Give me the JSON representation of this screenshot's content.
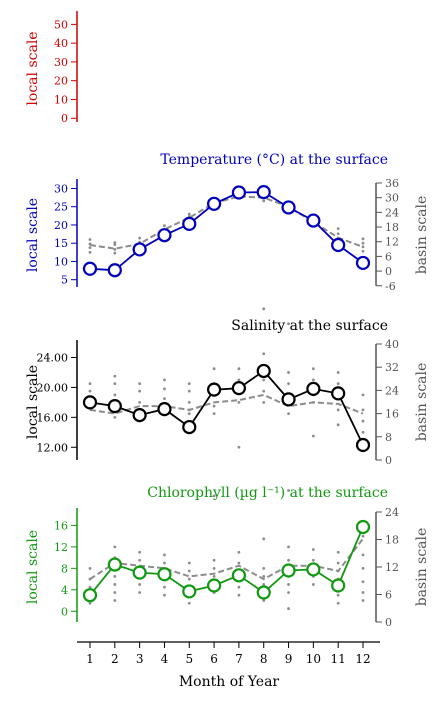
{
  "x_axis": {
    "label": "Month of Year",
    "ticks": [
      "1",
      "2",
      "3",
      "4",
      "5",
      "6",
      "7",
      "8",
      "9",
      "10",
      "11",
      "12"
    ]
  },
  "chart_data": [
    {
      "type": "line",
      "title": "",
      "ylabel": "local scale",
      "color": "#cc0000",
      "ylim": [
        -2,
        55
      ],
      "yticks": [
        0,
        10,
        20,
        30,
        40,
        50
      ],
      "tick_labels": [
        "0",
        "10",
        "20",
        "30",
        "40",
        "50"
      ],
      "series": []
    },
    {
      "type": "line",
      "title": "Temperature (°C) at the surface",
      "ylabel": "local scale",
      "y2label": "basin scale",
      "color": "#0000bb",
      "ylim": [
        3,
        31.5
      ],
      "yticks": [
        5,
        10,
        15,
        20,
        25,
        30
      ],
      "tick_labels": [
        "5",
        "10",
        "15",
        "20",
        "25",
        "30"
      ],
      "y2lim": [
        -6.5,
        36
      ],
      "y2ticks": [
        -6,
        0,
        6,
        12,
        18,
        24,
        30,
        36
      ],
      "y2tick_labels": [
        "-6",
        "0",
        "6",
        "12",
        "18",
        "24",
        "30",
        "36"
      ],
      "x": [
        1,
        2,
        3,
        4,
        5,
        6,
        7,
        8,
        9,
        10,
        11,
        12
      ],
      "values": [
        8.0,
        7.6,
        13.3,
        17.2,
        20.3,
        25.8,
        28.9,
        29.0,
        24.8,
        21.2,
        14.5,
        9.6
      ],
      "basin_mean": [
        14.5,
        13.5,
        14.8,
        18.8,
        22.0,
        26.0,
        27.8,
        27.5,
        25.0,
        20.8,
        16.5,
        14.0
      ],
      "scatter": [
        [
          1,
          16.0
        ],
        [
          1,
          14.8
        ],
        [
          1,
          13.8
        ],
        [
          1,
          12.5
        ],
        [
          2,
          15.2
        ],
        [
          2,
          14.6
        ],
        [
          2,
          13.3
        ],
        [
          2,
          12.3
        ],
        [
          3,
          16.4
        ],
        [
          3,
          15.3
        ],
        [
          3,
          14.2
        ],
        [
          4,
          19.8
        ],
        [
          4,
          18.8
        ],
        [
          4,
          17.8
        ],
        [
          5,
          23.0
        ],
        [
          5,
          22.3
        ],
        [
          5,
          21.6
        ],
        [
          6,
          27.0
        ],
        [
          6,
          26.0
        ],
        [
          6,
          25.4
        ],
        [
          7,
          28.6
        ],
        [
          7,
          27.9
        ],
        [
          8,
          28.5
        ],
        [
          8,
          27.5
        ],
        [
          8,
          26.6
        ],
        [
          9,
          26.0
        ],
        [
          9,
          25.0
        ],
        [
          9,
          24.0
        ],
        [
          10,
          22.0
        ],
        [
          10,
          21.0
        ],
        [
          10,
          20.1
        ],
        [
          11,
          19.0
        ],
        [
          11,
          17.6
        ],
        [
          11,
          16.4
        ],
        [
          11,
          15.4
        ],
        [
          12,
          16.2
        ],
        [
          12,
          15.0
        ],
        [
          12,
          14.0
        ],
        [
          12,
          12.8
        ]
      ]
    },
    {
      "type": "line",
      "title": "Salinity at the surface",
      "ylabel": "local scale",
      "y2label": "basin scale",
      "color": "#000000",
      "ylim": [
        10.3,
        25.8
      ],
      "yticks": [
        12,
        16,
        20,
        24
      ],
      "tick_labels": [
        "12.00",
        "16.00",
        "20.00",
        "24.00"
      ],
      "y2lim": [
        0,
        40
      ],
      "y2ticks": [
        0,
        8,
        16,
        24,
        32,
        40
      ],
      "y2tick_labels": [
        "0",
        "8",
        "16",
        "24",
        "32",
        "40"
      ],
      "x": [
        1,
        2,
        3,
        4,
        5,
        6,
        7,
        8,
        9,
        10,
        11,
        12
      ],
      "values": [
        18.0,
        17.5,
        16.3,
        17.1,
        14.7,
        19.7,
        19.9,
        22.2,
        18.4,
        19.8,
        19.2,
        12.3
      ],
      "basin_mean": [
        17.0,
        16.5,
        17.5,
        17.5,
        17.0,
        18.0,
        18.3,
        19.0,
        17.5,
        18.0,
        17.8,
        16.5
      ],
      "scatter": [
        [
          1,
          20.5
        ],
        [
          1,
          19.5
        ],
        [
          1,
          18.5
        ],
        [
          1,
          17.5
        ],
        [
          2,
          21.5
        ],
        [
          2,
          20.5
        ],
        [
          2,
          19.0
        ],
        [
          2,
          17.5
        ],
        [
          2,
          16.0
        ],
        [
          3,
          20.5
        ],
        [
          3,
          19.5
        ],
        [
          3,
          18.0
        ],
        [
          3,
          17.0
        ],
        [
          4,
          21.0
        ],
        [
          4,
          19.8
        ],
        [
          4,
          18.5
        ],
        [
          4,
          17.5
        ],
        [
          5,
          20.5
        ],
        [
          5,
          19.5
        ],
        [
          5,
          18.0
        ],
        [
          5,
          17.0
        ],
        [
          5,
          16.5
        ],
        [
          6,
          22.5
        ],
        [
          6,
          20.5
        ],
        [
          6,
          19.5
        ],
        [
          6,
          17.5
        ],
        [
          6,
          16.5
        ],
        [
          7,
          22.5
        ],
        [
          7,
          21.0
        ],
        [
          7,
          19.5
        ],
        [
          7,
          18.0
        ],
        [
          7,
          12.0
        ],
        [
          8,
          30.5
        ],
        [
          8,
          24.5
        ],
        [
          8,
          21.0
        ],
        [
          8,
          19.5
        ],
        [
          8,
          18.0
        ],
        [
          9,
          28.5
        ],
        [
          9,
          22.0
        ],
        [
          9,
          20.5
        ],
        [
          9,
          18.5
        ],
        [
          9,
          16.5
        ],
        [
          10,
          22.5
        ],
        [
          10,
          21.0
        ],
        [
          10,
          19.0
        ],
        [
          10,
          18.0
        ],
        [
          10,
          13.5
        ],
        [
          11,
          22.0
        ],
        [
          11,
          20.5
        ],
        [
          11,
          18.5
        ],
        [
          11,
          17.0
        ],
        [
          11,
          15.0
        ],
        [
          12,
          19.0
        ],
        [
          12,
          17.0
        ],
        [
          12,
          15.5
        ],
        [
          12,
          14.0
        ]
      ]
    },
    {
      "type": "line",
      "title": "Chlorophyll (µg l⁻¹) at the surface",
      "ylabel": "local scale",
      "y2label": "basin scale",
      "color": "#119911",
      "ylim": [
        -2,
        18.5
      ],
      "yticks": [
        0,
        4,
        8,
        12,
        16
      ],
      "tick_labels": [
        "0",
        "4",
        "8",
        "12",
        "16"
      ],
      "y2lim": [
        0,
        24
      ],
      "y2ticks": [
        0,
        6,
        12,
        18,
        24
      ],
      "y2tick_labels": [
        "0",
        "6",
        "12",
        "18",
        "24"
      ],
      "x": [
        1,
        2,
        3,
        4,
        5,
        6,
        7,
        8,
        9,
        10,
        11,
        12
      ],
      "values": [
        3.0,
        8.7,
        7.2,
        6.9,
        3.7,
        4.8,
        6.7,
        3.5,
        7.6,
        7.8,
        4.8,
        15.7
      ],
      "basin_mean": [
        6.0,
        9.0,
        8.5,
        8.0,
        6.5,
        7.0,
        8.5,
        6.0,
        8.5,
        8.5,
        7.5,
        13.5
      ],
      "scatter": [
        [
          1,
          8.0
        ],
        [
          1,
          6.0
        ],
        [
          1,
          4.5
        ],
        [
          1,
          3.0
        ],
        [
          1,
          1.5
        ],
        [
          2,
          12.0
        ],
        [
          2,
          10.0
        ],
        [
          2,
          8.0
        ],
        [
          2,
          6.5
        ],
        [
          2,
          5.0
        ],
        [
          2,
          3.5
        ],
        [
          2,
          2.0
        ],
        [
          3,
          11.0
        ],
        [
          3,
          9.5
        ],
        [
          3,
          8.0
        ],
        [
          3,
          6.5
        ],
        [
          3,
          5.0
        ],
        [
          3,
          3.5
        ],
        [
          4,
          10.5
        ],
        [
          4,
          9.0
        ],
        [
          4,
          7.5
        ],
        [
          4,
          6.0
        ],
        [
          4,
          4.5
        ],
        [
          4,
          3.0
        ],
        [
          5,
          9.0
        ],
        [
          5,
          7.5
        ],
        [
          5,
          6.0
        ],
        [
          5,
          4.5
        ],
        [
          5,
          3.0
        ],
        [
          5,
          1.5
        ],
        [
          6,
          21.5
        ],
        [
          6,
          9.5
        ],
        [
          6,
          8.0
        ],
        [
          6,
          6.5
        ],
        [
          6,
          5.0
        ],
        [
          6,
          3.5
        ],
        [
          7,
          11.0
        ],
        [
          7,
          9.0
        ],
        [
          7,
          7.5
        ],
        [
          7,
          6.0
        ],
        [
          7,
          4.5
        ],
        [
          7,
          3.0
        ],
        [
          8,
          13.5
        ],
        [
          8,
          8.0
        ],
        [
          8,
          6.5
        ],
        [
          8,
          5.0
        ],
        [
          8,
          3.5
        ],
        [
          8,
          2.0
        ],
        [
          9,
          22.5
        ],
        [
          9,
          12.0
        ],
        [
          9,
          9.5
        ],
        [
          9,
          8.0
        ],
        [
          9,
          6.5
        ],
        [
          9,
          5.0
        ],
        [
          9,
          3.5
        ],
        [
          9,
          0.5
        ],
        [
          10,
          11.5
        ],
        [
          10,
          9.5
        ],
        [
          10,
          8.0
        ],
        [
          10,
          6.5
        ],
        [
          10,
          5.0
        ],
        [
          11,
          11.0
        ],
        [
          11,
          9.0
        ],
        [
          11,
          7.5
        ],
        [
          11,
          6.0
        ],
        [
          11,
          4.5
        ],
        [
          11,
          3.0
        ],
        [
          11,
          1.5
        ],
        [
          12,
          14.0
        ],
        [
          12,
          10.5
        ],
        [
          12,
          8.0
        ],
        [
          12,
          5.5
        ],
        [
          12,
          3.5
        ],
        [
          12,
          2.0
        ]
      ]
    }
  ]
}
